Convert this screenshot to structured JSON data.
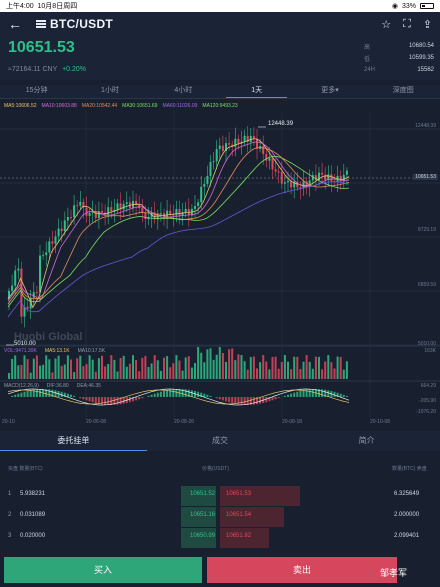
{
  "status": {
    "time": "上午4:00",
    "date": "10月8日周四",
    "battery": "33%"
  },
  "header": {
    "pair": "BTC/USDT",
    "back_icon": "arrow-left-icon",
    "icons": [
      "star-icon",
      "fullscreen-icon",
      "share-icon"
    ]
  },
  "ticker": {
    "price": "10651.53",
    "cny": "≈72164.11 CNY",
    "change": "+0.20%",
    "stats": [
      {
        "label": "高",
        "value": "10680.54"
      },
      {
        "label": "低",
        "value": "10599.35"
      },
      {
        "label": "24H",
        "value": "15562"
      }
    ]
  },
  "tabs": [
    {
      "label": "15分钟",
      "active": false
    },
    {
      "label": "1小时",
      "active": false
    },
    {
      "label": "4小时",
      "active": false
    },
    {
      "label": "1天",
      "active": true
    },
    {
      "label": "更多▾",
      "active": false
    },
    {
      "label": "深度图",
      "active": false
    }
  ],
  "chart": {
    "ma_legend": [
      "MA5:10606.52",
      "MA10:10603.88",
      "MA20:10542.44",
      "MA30:10651.69",
      "MA60:11026.09",
      "MA120:9493.23"
    ],
    "price_axis": [
      "12448.39",
      "10651.53",
      "8729.19",
      "6859.59",
      "5010.00"
    ],
    "high_label": "12448.39",
    "low_label": "5010.00",
    "current_price": "10651.53",
    "watermark": "Huobi Global",
    "vol_legend": [
      "VOL:9471.30K",
      "MA5:13.1K",
      "MA10:17.5K"
    ],
    "vol_axis": "163K",
    "macd_legend": [
      "MACD(12,26,9)",
      "DIF:36.80",
      "DEA:46.35"
    ],
    "macd_axis": [
      "664.29",
      "-205.90",
      "-1076.20"
    ],
    "x_labels": [
      "20-10",
      "20-06-08",
      "20-08-26",
      "20-08-18",
      "20-10-08"
    ]
  },
  "book": {
    "tabs": [
      {
        "label": "委托挂单",
        "active": true
      },
      {
        "label": "成交",
        "active": false
      },
      {
        "label": "简介",
        "active": false
      }
    ],
    "head": {
      "c1": "买盘 数量(BTC)",
      "c2": "价格(USDT)",
      "c3": "数量(BTC) 卖盘"
    },
    "rows": [
      {
        "n": "1",
        "bid_qty": "5.938231",
        "bid": "10651.52",
        "ask": "10651.53",
        "ask_qty": "6.325649",
        "bid_depth": 0.55,
        "ask_depth": 0.78
      },
      {
        "n": "2",
        "bid_qty": "0.031089",
        "bid": "10651.16",
        "ask": "10651.54",
        "ask_qty": "2.000000",
        "bid_depth": 0.55,
        "ask_depth": 0.62
      },
      {
        "n": "3",
        "bid_qty": "0.020000",
        "bid": "10650.99",
        "ask": "10651.82",
        "ask_qty": "2.099401",
        "bid_depth": 0.55,
        "ask_depth": 0.48
      }
    ]
  },
  "actions": {
    "buy": "买入",
    "sell": "卖出",
    "weibo": "邹孝军"
  }
}
